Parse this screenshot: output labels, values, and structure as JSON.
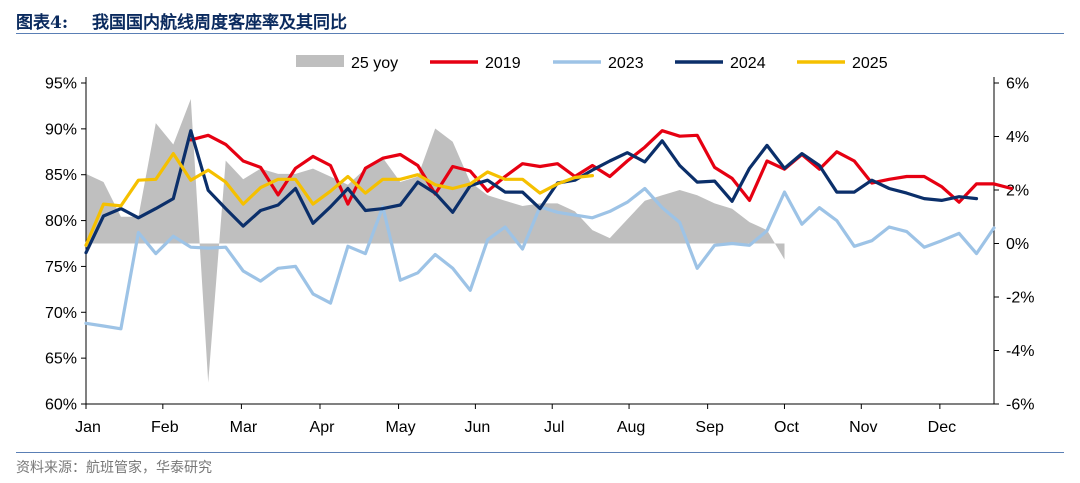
{
  "figure": {
    "label": "图表4:",
    "title": "我国国内航线周度客座率及其同比",
    "source": "资料来源：航班管家，华泰研究"
  },
  "colors": {
    "yoy_area": "#bfbfbf",
    "s2019": "#e60012",
    "s2023": "#9dc3e6",
    "s2024": "#0b2f6a",
    "s2025": "#f5c000",
    "rule": "#5a7fb5",
    "title": "#0a2a5e"
  },
  "chart_data": {
    "type": "line",
    "x_unit": "week_of_year",
    "xlim": [
      1,
      53
    ],
    "x_ticks": [
      {
        "label": "Jan",
        "x": 1
      },
      {
        "label": "Feb",
        "x": 5.4
      },
      {
        "label": "Mar",
        "x": 9.9
      },
      {
        "label": "Apr",
        "x": 14.4
      },
      {
        "label": "May",
        "x": 18.9
      },
      {
        "label": "Jun",
        "x": 23.3
      },
      {
        "label": "Jul",
        "x": 27.7
      },
      {
        "label": "Aug",
        "x": 32.1
      },
      {
        "label": "Sep",
        "x": 36.6
      },
      {
        "label": "Oct",
        "x": 41.0
      },
      {
        "label": "Nov",
        "x": 45.4
      },
      {
        "label": "Dec",
        "x": 49.9
      }
    ],
    "y_left": {
      "min": 60,
      "max": 95,
      "step": 5,
      "tick_labels": [
        "60%",
        "65%",
        "70%",
        "75%",
        "80%",
        "85%",
        "90%",
        "95%"
      ]
    },
    "y_right": {
      "min": -6,
      "max": 6,
      "step": 2,
      "tick_labels": [
        "-6%",
        "-4%",
        "-2%",
        "0%",
        "2%",
        "4%",
        "6%"
      ]
    },
    "legend": {
      "position": "top",
      "entries": [
        {
          "key": "yoy",
          "label": "25 yoy"
        },
        {
          "key": "s2019",
          "label": "2019"
        },
        {
          "key": "s2023",
          "label": "2023"
        },
        {
          "key": "s2024",
          "label": "2024"
        },
        {
          "key": "s2025",
          "label": "2025"
        }
      ]
    },
    "yoy": {
      "axis": "right",
      "type": "area",
      "values": [
        2.6,
        2.3,
        1.0,
        1.0,
        4.5,
        3.7,
        5.4,
        -5.2,
        3.1,
        2.4,
        2.8,
        2.6,
        2.6,
        2.8,
        2.5,
        2.2,
        2.8,
        3.2,
        2.3,
        2.5,
        4.3,
        3.8,
        2.3,
        1.8,
        1.6,
        1.4,
        1.5,
        1.5,
        1.2,
        0.5,
        0.2,
        0.9,
        1.6,
        1.8,
        2.0,
        1.8,
        1.5,
        1.3,
        0.8,
        0.5,
        -0.6
      ]
    },
    "series": [
      {
        "key": "s2019",
        "name": "2019",
        "axis": "left",
        "values": [
          null,
          null,
          null,
          null,
          null,
          null,
          88.8,
          89.3,
          88.3,
          86.5,
          85.8,
          82.8,
          85.7,
          87.0,
          86.0,
          81.8,
          85.7,
          86.8,
          87.2,
          86.0,
          82.9,
          85.9,
          85.4,
          83.2,
          84.8,
          86.2,
          85.9,
          86.2,
          84.8,
          86.0,
          84.8,
          86.5,
          88.0,
          89.8,
          89.2,
          89.3,
          85.8,
          84.6,
          82.2,
          86.5,
          85.6,
          87.2,
          85.6,
          87.5,
          86.5,
          84.1,
          84.5,
          84.8,
          84.8,
          83.7,
          82.0,
          84.0,
          84.0,
          83.5
        ]
      },
      {
        "key": "s2023",
        "name": "2023",
        "axis": "left",
        "values": [
          68.8,
          68.5,
          68.2,
          78.7,
          76.4,
          78.3,
          77.1,
          77.0,
          77.1,
          74.5,
          73.4,
          74.8,
          75.0,
          72.0,
          71.0,
          77.2,
          76.4,
          81.5,
          73.5,
          74.3,
          76.3,
          74.8,
          72.4,
          77.9,
          79.3,
          76.9,
          81.5,
          80.9,
          80.6,
          80.3,
          81.0,
          82.0,
          83.5,
          81.4,
          79.8,
          74.8,
          77.3,
          77.5,
          77.3,
          78.9,
          83.1,
          79.6,
          81.4,
          80.0,
          77.2,
          77.8,
          79.3,
          78.8,
          77.1,
          77.8,
          78.6,
          76.4,
          79.2
        ]
      },
      {
        "key": "s2024",
        "name": "2024",
        "axis": "left",
        "values": [
          76.5,
          80.5,
          81.3,
          80.3,
          81.3,
          82.4,
          89.8,
          83.3,
          81.3,
          79.4,
          81.1,
          81.7,
          83.5,
          79.7,
          81.5,
          83.5,
          81.1,
          81.3,
          81.7,
          84.2,
          83.0,
          80.9,
          83.8,
          84.4,
          83.1,
          83.1,
          81.3,
          84.1,
          84.4,
          85.5,
          86.5,
          87.4,
          86.4,
          88.7,
          86.0,
          84.2,
          84.3,
          82.1,
          85.7,
          88.2,
          85.7,
          87.3,
          86.0,
          83.1,
          83.1,
          84.4,
          83.5,
          83.0,
          82.4,
          82.2,
          82.6,
          82.4
        ]
      },
      {
        "key": "s2025",
        "name": "2025",
        "axis": "left",
        "values": [
          77.3,
          81.8,
          81.6,
          84.4,
          84.5,
          87.3,
          84.4,
          85.5,
          84.2,
          81.8,
          83.6,
          84.5,
          84.5,
          81.8,
          83.2,
          84.8,
          83.0,
          84.5,
          84.5,
          85.0,
          83.9,
          83.5,
          84.0,
          85.3,
          84.5,
          84.5,
          83.0,
          84.0,
          84.7,
          84.9
        ]
      }
    ]
  }
}
